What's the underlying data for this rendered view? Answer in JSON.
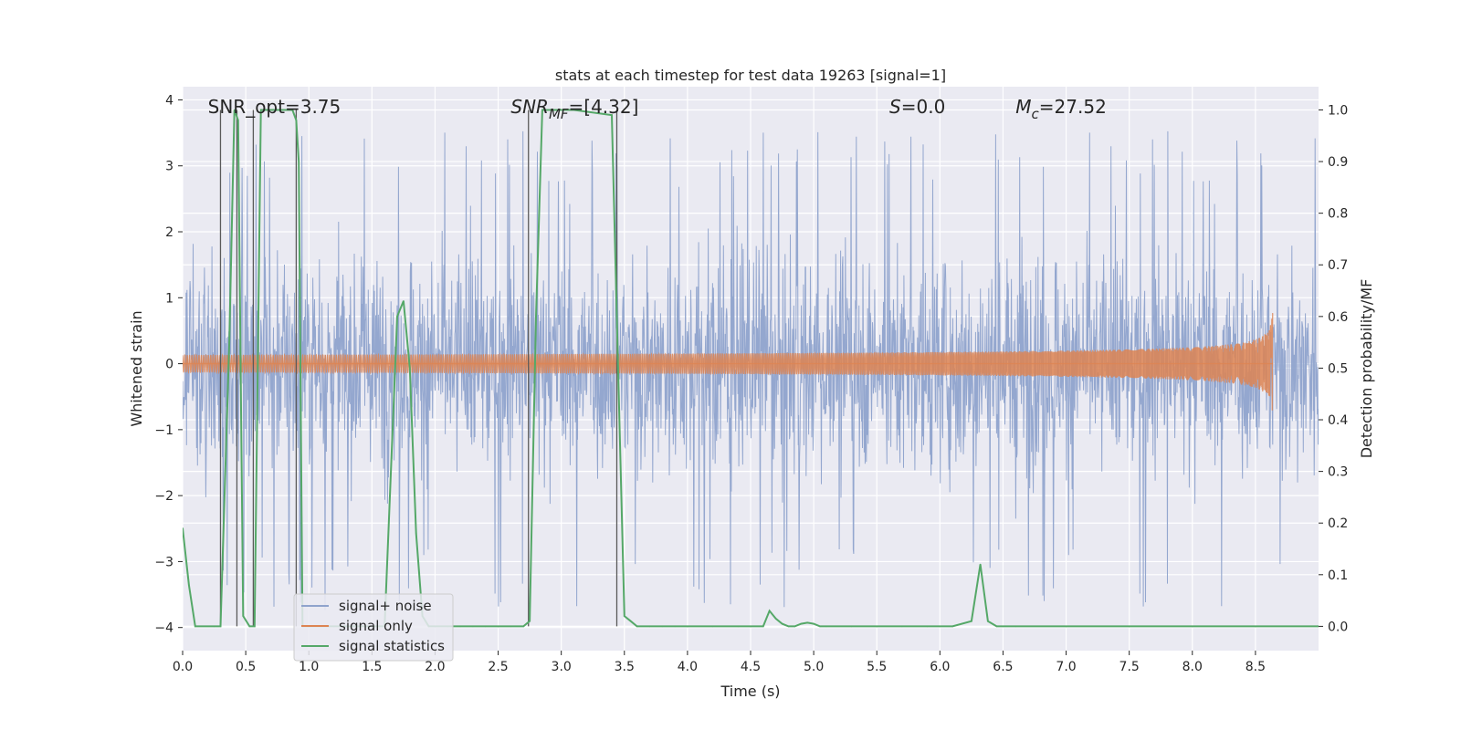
{
  "chart_data": {
    "type": "line",
    "title": "stats at each timestep for test data 19263 [signal=1]",
    "xlabel": "Time (s)",
    "ylabel_left": "Whitened strain",
    "ylabel_right": "Detection probability/MF",
    "xlim": [
      0,
      9.0
    ],
    "ylim_left": [
      -4.35,
      4.2
    ],
    "ylim_right": [
      -0.047,
      1.045
    ],
    "x_ticks": [
      "0.0",
      "0.5",
      "1.0",
      "1.5",
      "2.0",
      "2.5",
      "3.0",
      "3.5",
      "4.0",
      "4.5",
      "5.0",
      "5.5",
      "6.0",
      "6.5",
      "7.0",
      "7.5",
      "8.0",
      "8.5"
    ],
    "x_tick_values": [
      0,
      0.5,
      1.0,
      1.5,
      2.0,
      2.5,
      3.0,
      3.5,
      4.0,
      4.5,
      5.0,
      5.5,
      6.0,
      6.5,
      7.0,
      7.5,
      8.0,
      8.5
    ],
    "y_ticks_left": [
      "−4",
      "−3",
      "−2",
      "−1",
      "0",
      "1",
      "2",
      "3",
      "4"
    ],
    "y_tick_values_left": [
      -4,
      -3,
      -2,
      -1,
      0,
      1,
      2,
      3,
      4
    ],
    "y_ticks_right": [
      "0.0",
      "0.1",
      "0.2",
      "0.3",
      "0.4",
      "0.5",
      "0.6",
      "0.7",
      "0.8",
      "0.9",
      "1.0"
    ],
    "y_tick_values_right": [
      0,
      0.1,
      0.2,
      0.3,
      0.4,
      0.5,
      0.6,
      0.7,
      0.8,
      0.9,
      1.0
    ],
    "grid": true,
    "legend_position": "lower-left",
    "annotations": {
      "snr_opt": "SNR_opt=3.75",
      "snr_mf_main": "SNR",
      "snr_mf_sub": "MF",
      "snr_mf_value": "=[4.32]",
      "s_main": "S",
      "s_value": "=0.0",
      "mc_main": "M",
      "mc_sub": "c",
      "mc_value": "=27.52"
    },
    "annotation_x": [
      0.2,
      2.6,
      5.6,
      6.6
    ],
    "series": [
      {
        "name": "signal+ noise",
        "axis": "left",
        "color": "#8fa3cc",
        "kind": "noise",
        "x_range": [
          0,
          9.0
        ],
        "amplitude": 1.5,
        "peak_range": [
          -3.75,
          3.55
        ]
      },
      {
        "name": "signal only",
        "axis": "left",
        "color": "#dd8452",
        "kind": "chirp",
        "x_range": [
          0,
          8.64
        ],
        "peak_amplitude": 0.9,
        "merger_time": 8.64
      },
      {
        "name": "signal statistics",
        "axis": "right",
        "color": "#55a868",
        "kind": "line",
        "x": [
          0,
          0.05,
          0.1,
          0.25,
          0.3,
          0.37,
          0.41,
          0.44,
          0.48,
          0.53,
          0.57,
          0.62,
          0.66,
          0.87,
          0.9,
          0.92,
          0.95,
          1.0,
          1.1,
          1.2,
          1.3,
          1.4,
          1.5,
          1.6,
          1.7,
          1.75,
          1.8,
          1.85,
          1.9,
          1.95,
          2.0,
          2.1,
          2.2,
          2.3,
          2.4,
          2.5,
          2.6,
          2.7,
          2.75,
          2.8,
          2.85,
          3.1,
          3.4,
          3.45,
          3.5,
          3.55,
          3.6,
          3.7,
          3.8,
          3.9,
          4.0,
          4.2,
          4.4,
          4.5,
          4.6,
          4.65,
          4.7,
          4.75,
          4.8,
          4.85,
          4.9,
          4.95,
          5.0,
          5.05,
          5.1,
          5.3,
          5.5,
          5.7,
          5.9,
          6.1,
          6.25,
          6.32,
          6.38,
          6.45,
          6.6,
          7.0,
          7.5,
          8.0,
          8.5,
          9.0
        ],
        "y": [
          0.19,
          0.08,
          0.0,
          0.0,
          0.0,
          0.55,
          1.0,
          0.98,
          0.02,
          0.0,
          0.0,
          1.0,
          1.0,
          1.0,
          0.98,
          0.9,
          0.0,
          0.0,
          0.0,
          0.0,
          0.0,
          0.0,
          0.0,
          0.0,
          0.6,
          0.63,
          0.5,
          0.18,
          0.02,
          0.0,
          0.0,
          0.0,
          0.0,
          0.0,
          0.0,
          0.0,
          0.0,
          0.0,
          0.01,
          0.6,
          1.0,
          1.0,
          0.99,
          0.5,
          0.02,
          0.01,
          0.0,
          0.0,
          0.0,
          0.0,
          0.0,
          0.0,
          0.0,
          0.0,
          0.0,
          0.03,
          0.015,
          0.005,
          0.0,
          0.0,
          0.005,
          0.007,
          0.005,
          0.0,
          0.0,
          0.0,
          0.0,
          0.0,
          0.0,
          0.0,
          0.01,
          0.12,
          0.01,
          0.0,
          0.0,
          0.0,
          0.0,
          0.0,
          0.0,
          0.0
        ]
      }
    ],
    "vertical_markers": {
      "color": "#5a5a5a",
      "x": [
        0.3,
        0.43,
        0.56,
        0.9,
        2.74,
        3.44
      ]
    }
  }
}
